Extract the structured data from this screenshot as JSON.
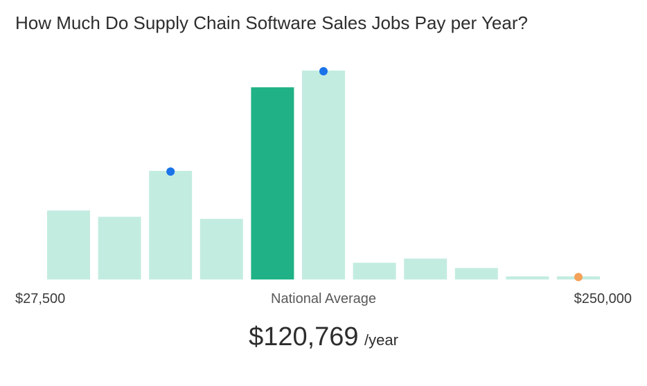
{
  "chart_data": {
    "type": "bar",
    "title": "How Much Do Supply Chain Software Sales Jobs Pay per Year?",
    "xlabel": "",
    "ylabel": "",
    "x_min_label": "$27,500",
    "x_mid_label": "National Average",
    "x_max_label": "$250,000",
    "values": [
      33,
      30,
      52,
      29,
      92,
      100,
      8,
      10,
      5.5,
      1.5,
      1.5
    ],
    "highlight_index": 4,
    "markers": [
      {
        "index": 2,
        "color": "#1a73e8"
      },
      {
        "index": 5,
        "color": "#1a73e8"
      },
      {
        "index": 10,
        "color": "#f4a259"
      }
    ],
    "colors": {
      "bar": "#c3ece1",
      "highlight": "#20b286"
    },
    "grid": false
  },
  "average": {
    "value": "$120,769",
    "unit": "/year"
  }
}
